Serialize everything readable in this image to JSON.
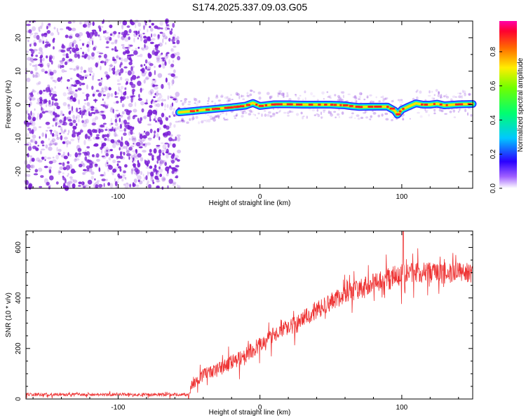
{
  "title": "S174.2025.337.09.03.G05",
  "colors": {
    "snr_line": "#ee3333",
    "noise_purple": "#7a1fd6",
    "track_core": "#ff2020",
    "track_mid": "#ffe000",
    "track_outer": "#00d8ff",
    "track_edge": "#2a2aff"
  },
  "chart_data": [
    {
      "type": "heatmap",
      "name": "spectrogram",
      "xlabel": "Height of straight line (km)",
      "ylabel": "Frequency (Hz)",
      "xlim": [
        -165,
        150
      ],
      "ylim": [
        -25,
        25
      ],
      "xticks": [
        -100,
        0,
        100
      ],
      "xtick_labels": [
        "-100",
        "0",
        "100"
      ],
      "yticks": [
        -20,
        -10,
        0,
        10,
        20
      ],
      "ytick_labels": [
        "-20",
        "-10",
        "0",
        "10",
        "20"
      ],
      "noise_region_x": [
        -165,
        -57
      ],
      "track": {
        "x": [
          -57,
          -50,
          -40,
          -30,
          -20,
          -10,
          -5,
          0,
          10,
          20,
          30,
          40,
          50,
          60,
          65,
          70,
          80,
          90,
          95,
          97,
          100,
          105,
          110,
          115,
          120,
          125,
          130,
          140,
          150
        ],
        "freq": [
          -2.3,
          -2.0,
          -1.6,
          -1.2,
          -0.8,
          -0.3,
          0.5,
          -0.4,
          0.1,
          0.1,
          0.0,
          0.0,
          0.0,
          -0.2,
          -0.5,
          -0.7,
          -0.6,
          -0.6,
          -1.8,
          -3.0,
          -1.5,
          -0.5,
          0.4,
          0.0,
          0.0,
          0.3,
          -0.2,
          0.1,
          0.2
        ]
      },
      "colorbar": {
        "label": "Normalized spectral amplitude",
        "range": [
          0,
          0.98
        ],
        "ticks": [
          0.0,
          0.2,
          0.4,
          0.6,
          0.8
        ],
        "tick_labels": [
          "0.0",
          "0.2",
          "0.4",
          "0.6",
          "0.8"
        ]
      }
    },
    {
      "type": "line",
      "name": "snr",
      "xlabel": "Height of straight line (km)",
      "ylabel": "SNR (10 * v/v)",
      "xlim": [
        -165,
        150
      ],
      "ylim": [
        0,
        665
      ],
      "xticks": [
        -100,
        0,
        100
      ],
      "xtick_labels": [
        "-100",
        "0",
        "100"
      ],
      "yticks": [
        0,
        200,
        400,
        600
      ],
      "ytick_labels": [
        "0",
        "200",
        "400",
        "600"
      ],
      "envelope": {
        "x": [
          -165,
          -50,
          -48,
          -40,
          -30,
          -20,
          -10,
          0,
          10,
          20,
          30,
          40,
          50,
          60,
          70,
          80,
          90,
          100,
          110,
          120,
          130,
          140,
          150
        ],
        "mean": [
          18,
          18,
          60,
          95,
          115,
          145,
          175,
          215,
          255,
          290,
          320,
          350,
          385,
          415,
          435,
          460,
          475,
          490,
          500,
          500,
          495,
          505,
          500
        ],
        "amplitude": [
          12,
          12,
          45,
          50,
          55,
          60,
          65,
          60,
          60,
          60,
          65,
          70,
          70,
          75,
          80,
          80,
          90,
          95,
          80,
          80,
          80,
          80,
          80
        ]
      },
      "peak": {
        "x": 101,
        "y": 665
      }
    }
  ]
}
